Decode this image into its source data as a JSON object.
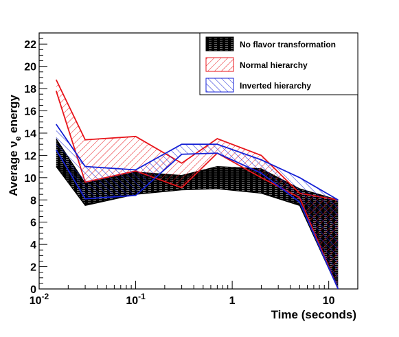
{
  "chart_data": {
    "type": "area",
    "ylabel_parts": {
      "prefix": "Average ",
      "nu": "ν",
      "sub": "e",
      "suffix": " energy"
    },
    "xlabel": "Time (seconds)",
    "xscale": "log",
    "xlim": [
      0.01,
      20
    ],
    "ylim": [
      0,
      23
    ],
    "x_ticks": [
      {
        "value": 0.01,
        "base": "10",
        "exp": "-2"
      },
      {
        "value": 0.1,
        "base": "10",
        "exp": "-1"
      },
      {
        "value": 1,
        "label": "1"
      },
      {
        "value": 10,
        "label": "10"
      }
    ],
    "y_ticks": [
      0,
      2,
      4,
      6,
      8,
      10,
      12,
      14,
      16,
      18,
      20,
      22
    ],
    "legend_position": "top-right",
    "colors": {
      "no_flavor": "#000000",
      "normal": "#e8151b",
      "inverted": "#1521d6"
    },
    "x": [
      0.015,
      0.03,
      0.1,
      0.3,
      0.7,
      2,
      5,
      12.5
    ],
    "series": [
      {
        "name": "No flavor transformation",
        "key": "no_flavor",
        "lower": [
          11.0,
          7.5,
          8.5,
          8.9,
          9.0,
          8.6,
          7.5,
          0.0
        ],
        "upper": [
          13.5,
          9.5,
          10.5,
          10.2,
          11.0,
          10.8,
          9.0,
          8.0
        ]
      },
      {
        "name": "Normal hierarchy",
        "key": "normal",
        "lower": [
          17.8,
          9.6,
          10.6,
          9.1,
          12.2,
          10.0,
          8.2,
          0.0
        ],
        "upper": [
          18.8,
          13.4,
          13.7,
          11.3,
          13.5,
          12.0,
          8.6,
          8.0
        ]
      },
      {
        "name": "Inverted hierarchy",
        "key": "inverted",
        "lower": [
          12.5,
          8.1,
          8.4,
          12.1,
          12.2,
          10.4,
          7.8,
          0.0
        ],
        "upper": [
          14.8,
          11.0,
          10.7,
          13.0,
          13.0,
          11.6,
          10.0,
          8.0
        ]
      }
    ]
  }
}
